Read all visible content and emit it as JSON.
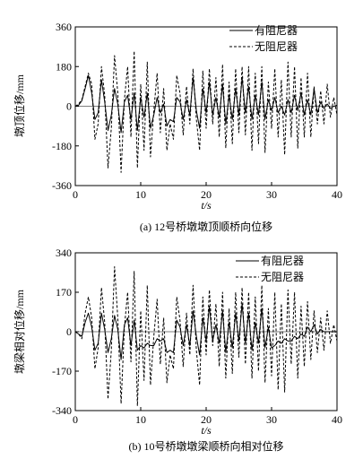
{
  "chart_data": [
    {
      "type": "line",
      "caption": "(a) 12号桥墩墩顶顺桥向位移",
      "ylabel": "墩顶位移/mm",
      "xlabel": "t/s",
      "xlim": [
        0,
        40
      ],
      "ylim": [
        -360,
        360
      ],
      "xticks": [
        "0",
        "10",
        "20",
        "30",
        "40"
      ],
      "yticks": [
        "360",
        "180",
        "0",
        "-180",
        "-360"
      ],
      "legend_position": "top-right",
      "series": [
        {
          "name": "有阻尼器",
          "style": "solid",
          "x": [
            0,
            0.5,
            1.0,
            1.5,
            2.0,
            2.5,
            3.0,
            3.5,
            4.0,
            4.5,
            5.0,
            5.5,
            6.0,
            6.5,
            7.0,
            7.5,
            8.0,
            8.5,
            9.0,
            9.5,
            10.0,
            10.5,
            11.0,
            11.5,
            12.0,
            12.5,
            13.0,
            13.5,
            14.0,
            14.5,
            15.0,
            15.5,
            16.0,
            16.5,
            17.0,
            17.5,
            18.0,
            18.5,
            19.0,
            19.5,
            20.0,
            20.5,
            21.0,
            21.5,
            22.0,
            22.5,
            23.0,
            23.5,
            24.0,
            24.5,
            25.0,
            25.5,
            26.0,
            26.5,
            27.0,
            27.5,
            28.0,
            28.5,
            29.0,
            29.5,
            30.0,
            30.5,
            31.0,
            31.5,
            32.0,
            32.5,
            33.0,
            33.5,
            34.0,
            34.5,
            35.0,
            35.5,
            36.0,
            36.5,
            37.0,
            37.5,
            38.0,
            38.5,
            39.0,
            39.5,
            40.0
          ],
          "y": [
            0,
            5,
            25,
            80,
            140,
            60,
            -60,
            -30,
            120,
            20,
            -110,
            -40,
            80,
            10,
            -120,
            20,
            50,
            -60,
            60,
            -110,
            40,
            -50,
            60,
            -100,
            -40,
            40,
            -30,
            10,
            -90,
            -60,
            -70,
            40,
            20,
            -60,
            30,
            -40,
            130,
            -20,
            -100,
            80,
            -30,
            110,
            -40,
            40,
            -50,
            100,
            -80,
            50,
            -60,
            80,
            -40,
            130,
            -30,
            90,
            -60,
            50,
            -40,
            110,
            -60,
            30,
            -20,
            40,
            -30,
            0,
            -40,
            30,
            -30,
            50,
            -20,
            60,
            -40,
            30,
            -40,
            80,
            -30,
            20,
            -10,
            10,
            -10,
            0,
            5
          ]
        },
        {
          "name": "无阻尼器",
          "style": "dashed",
          "x": [
            0,
            0.5,
            1.0,
            1.5,
            2.0,
            2.5,
            3.0,
            3.5,
            4.0,
            4.5,
            5.0,
            5.5,
            6.0,
            6.5,
            7.0,
            7.5,
            8.0,
            8.5,
            9.0,
            9.5,
            10.0,
            10.5,
            11.0,
            11.5,
            12.0,
            12.5,
            13.0,
            13.5,
            14.0,
            14.5,
            15.0,
            15.5,
            16.0,
            16.5,
            17.0,
            17.5,
            18.0,
            18.5,
            19.0,
            19.5,
            20.0,
            20.5,
            21.0,
            21.5,
            22.0,
            22.5,
            23.0,
            23.5,
            24.0,
            24.5,
            25.0,
            25.5,
            26.0,
            26.5,
            27.0,
            27.5,
            28.0,
            28.5,
            29.0,
            29.5,
            30.0,
            30.5,
            31.0,
            31.5,
            32.0,
            32.5,
            33.0,
            33.5,
            34.0,
            34.5,
            35.0,
            35.5,
            36.0,
            36.5,
            37.0,
            37.5,
            38.0,
            38.5,
            39.0,
            39.5,
            40.0
          ],
          "y": [
            0,
            10,
            30,
            90,
            150,
            100,
            -150,
            -80,
            180,
            50,
            -280,
            -100,
            230,
            60,
            -300,
            30,
            180,
            -140,
            250,
            -280,
            100,
            -200,
            200,
            -230,
            -20,
            150,
            -120,
            80,
            -200,
            -80,
            -150,
            140,
            60,
            -130,
            90,
            -80,
            170,
            -60,
            -200,
            160,
            -100,
            170,
            -80,
            130,
            -140,
            190,
            -190,
            110,
            -170,
            170,
            -120,
            180,
            -130,
            180,
            -200,
            150,
            -170,
            180,
            -210,
            110,
            -100,
            170,
            -140,
            120,
            -220,
            200,
            -140,
            180,
            -190,
            130,
            -140,
            150,
            -140,
            90,
            -80,
            70,
            -80,
            100,
            -50,
            40,
            -40
          ]
        }
      ]
    },
    {
      "type": "line",
      "caption": "(b) 10号桥墩墩梁顺桥向相对位移",
      "ylabel": "墩梁相对位移/mm",
      "xlabel": "t/s",
      "xlim": [
        0,
        40
      ],
      "ylim": [
        -340,
        340
      ],
      "xticks": [
        "0",
        "10",
        "20",
        "30",
        "40"
      ],
      "yticks": [
        "340",
        "170",
        "0",
        "-170",
        "-340"
      ],
      "legend_position": "top-right",
      "series": [
        {
          "name": "有阻尼器",
          "style": "solid",
          "x": [
            0,
            0.5,
            1.0,
            1.5,
            2.0,
            2.5,
            3.0,
            3.5,
            4.0,
            4.5,
            5.0,
            5.5,
            6.0,
            6.5,
            7.0,
            7.5,
            8.0,
            8.5,
            9.0,
            9.5,
            10.0,
            10.5,
            11.0,
            11.5,
            12.0,
            12.5,
            13.0,
            13.5,
            14.0,
            14.5,
            15.0,
            15.5,
            16.0,
            16.5,
            17.0,
            17.5,
            18.0,
            18.5,
            19.0,
            19.5,
            20.0,
            20.5,
            21.0,
            21.5,
            22.0,
            22.5,
            23.0,
            23.5,
            24.0,
            24.5,
            25.0,
            25.5,
            26.0,
            26.5,
            27.0,
            27.5,
            28.0,
            28.5,
            29.0,
            29.5,
            30.0,
            30.5,
            31.0,
            31.5,
            32.0,
            32.5,
            33.0,
            33.5,
            34.0,
            34.5,
            35.0,
            35.5,
            36.0,
            36.5,
            37.0,
            37.5,
            38.0,
            38.5,
            39.0,
            39.5,
            40.0
          ],
          "y": [
            0,
            -10,
            -20,
            40,
            80,
            20,
            -80,
            -50,
            80,
            10,
            -90,
            -30,
            70,
            10,
            -120,
            30,
            60,
            -60,
            50,
            -80,
            -60,
            -70,
            -50,
            -60,
            -60,
            -30,
            -40,
            -30,
            -90,
            -80,
            -90,
            50,
            20,
            -60,
            30,
            -60,
            90,
            -20,
            -100,
            60,
            -40,
            110,
            -40,
            30,
            -50,
            90,
            -90,
            40,
            -70,
            80,
            -40,
            120,
            -50,
            80,
            -80,
            40,
            -50,
            100,
            -70,
            20,
            -70,
            -60,
            -40,
            -50,
            -30,
            -40,
            -40,
            -20,
            -30,
            -10,
            -20,
            20,
            0,
            30,
            -10,
            10,
            0,
            0,
            0,
            0,
            0
          ]
        },
        {
          "name": "无阻尼器",
          "style": "dashed",
          "x": [
            0,
            0.5,
            1.0,
            1.5,
            2.0,
            2.5,
            3.0,
            3.5,
            4.0,
            4.5,
            5.0,
            5.5,
            6.0,
            6.5,
            7.0,
            7.5,
            8.0,
            8.5,
            9.0,
            9.5,
            10.0,
            10.5,
            11.0,
            11.5,
            12.0,
            12.5,
            13.0,
            13.5,
            14.0,
            14.5,
            15.0,
            15.5,
            16.0,
            16.5,
            17.0,
            17.5,
            18.0,
            18.5,
            19.0,
            19.5,
            20.0,
            20.5,
            21.0,
            21.5,
            22.0,
            22.5,
            23.0,
            23.5,
            24.0,
            24.5,
            25.0,
            25.5,
            26.0,
            26.5,
            27.0,
            27.5,
            28.0,
            28.5,
            29.0,
            29.5,
            30.0,
            30.5,
            31.0,
            31.5,
            32.0,
            32.5,
            33.0,
            33.5,
            34.0,
            34.5,
            35.0,
            35.5,
            36.0,
            36.5,
            37.0,
            37.5,
            38.0,
            38.5,
            39.0,
            39.5,
            40.0
          ],
          "y": [
            0,
            -10,
            -30,
            80,
            150,
            60,
            -160,
            -70,
            190,
            40,
            -290,
            -80,
            280,
            60,
            -310,
            20,
            170,
            -130,
            260,
            -320,
            90,
            -210,
            200,
            -230,
            -20,
            140,
            -140,
            60,
            -220,
            -100,
            -160,
            150,
            50,
            -150,
            80,
            -100,
            200,
            -80,
            -230,
            150,
            -100,
            180,
            -60,
            120,
            -150,
            170,
            -200,
            100,
            -180,
            170,
            -110,
            190,
            -140,
            170,
            -200,
            150,
            -170,
            200,
            -220,
            100,
            -190,
            170,
            -250,
            120,
            -260,
            180,
            -140,
            170,
            -200,
            110,
            -150,
            130,
            -120,
            90,
            -90,
            60,
            -80,
            90,
            -50,
            30,
            -40
          ]
        }
      ]
    }
  ]
}
